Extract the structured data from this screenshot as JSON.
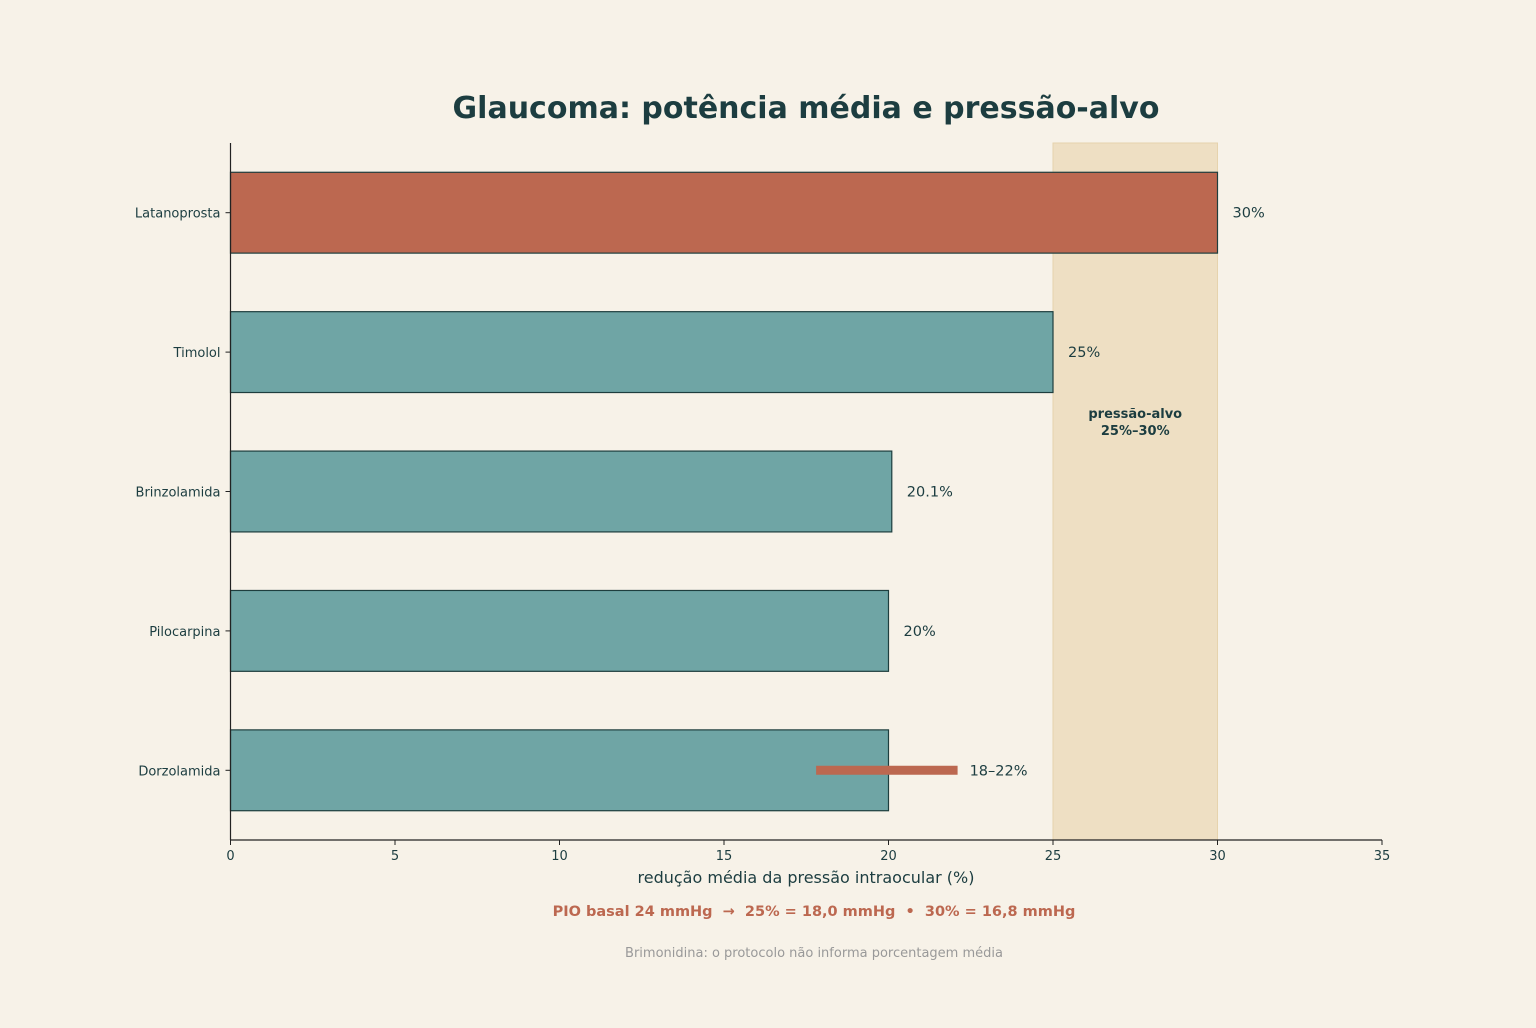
{
  "chart_data": {
    "type": "bar",
    "orientation": "horizontal",
    "title": "Glaucoma: potência média e pressão-alvo",
    "xlabel": "redução média da pressão intraocular (%)",
    "ylabel": "",
    "xlim": [
      0,
      35
    ],
    "xticks": [
      0,
      5,
      10,
      15,
      20,
      25,
      30,
      35
    ],
    "categories": [
      "Latanoprosta",
      "Timolol",
      "Brinzolamida",
      "Pilocarpina",
      "Dorzolamida"
    ],
    "values": [
      30,
      25,
      20.1,
      20,
      20
    ],
    "value_labels": [
      "30%",
      "25%",
      "20.1%",
      "20%",
      ""
    ],
    "highlight_index": 0,
    "range": {
      "category": "Dorzolamida",
      "low": 17.8,
      "high": 22.1,
      "label": "18–22%"
    },
    "target_band": {
      "low": 25,
      "high": 30,
      "label_line1": "pressão-alvo",
      "label_line2": "25%–30%"
    },
    "grid": false,
    "legend": "none",
    "footnote_main": "PIO basal 24 mmHg  →  25% = 18,0 mmHg  •  30% = 16,8 mmHg",
    "footnote_secondary": "Brimonidina: o protocolo não informa porcentagem média",
    "colors": {
      "background": "#f7f2e8",
      "bar": "#6fa5a5",
      "highlight_bar": "#bc6850",
      "bar_edge": "#1e3e3e",
      "band": "#eedfc3",
      "text_dark": "#1c3d40",
      "accent": "#bc6850",
      "muted": "#999999"
    }
  }
}
